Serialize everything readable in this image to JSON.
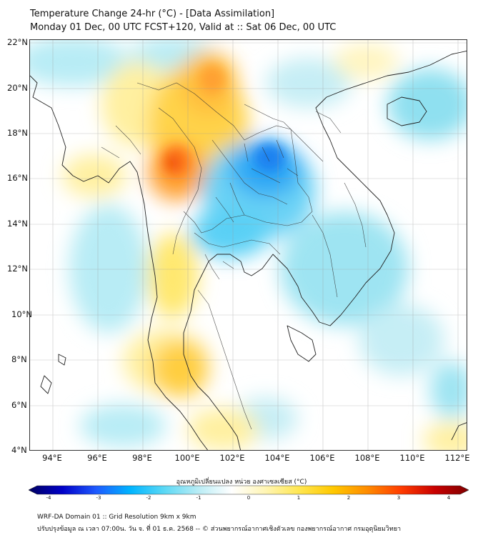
{
  "header": {
    "title": "Temperature Change 24-hr (°C) - [Data Assimilation]",
    "subtitle": "Monday 01 Dec, 00 UTC FCST+120, Valid at :: Sat 06 Dec, 00 UTC"
  },
  "map": {
    "lat_labels": [
      "22°N",
      "20°N",
      "18°N",
      "16°N",
      "14°N",
      "12°N",
      "10°N",
      "8°N",
      "6°N",
      "4°N"
    ],
    "lon_labels": [
      "94°E",
      "96°E",
      "98°E",
      "100°E",
      "102°E",
      "104°E",
      "106°E",
      "108°E",
      "110°E",
      "112°E"
    ]
  },
  "colorbar": {
    "title": "อุณหภูมิเปลี่ยนแปลง หน่วย องศาเซลเซียส (°C)",
    "ticks": [
      "-4",
      "-3",
      "-2",
      "-1",
      "0",
      "1",
      "2",
      "3",
      "4"
    ],
    "min": -4,
    "max": 4,
    "colors": [
      "#000060",
      "#0000c8",
      "#1e5aff",
      "#00b4ff",
      "#5ad8f5",
      "#b8ecf5",
      "#ffffff",
      "#fff5b4",
      "#ffe650",
      "#ffc800",
      "#ff8c00",
      "#ff3c00",
      "#c80000",
      "#800000"
    ]
  },
  "footer": {
    "line1": "WRF-DA Domain 01 :: Grid Resolution 9km x 9km",
    "line2": "ปรับปรุงข้อมูล ณ เวลา 07:00น. วัน จ. ที่ 01 ธ.ค. 2568 -- © ส่วนพยากรณ์อากาศเชิงตัวเลข กองพยากรณ์อากาศ กรมอุตุนิยมวิทยา"
  }
}
